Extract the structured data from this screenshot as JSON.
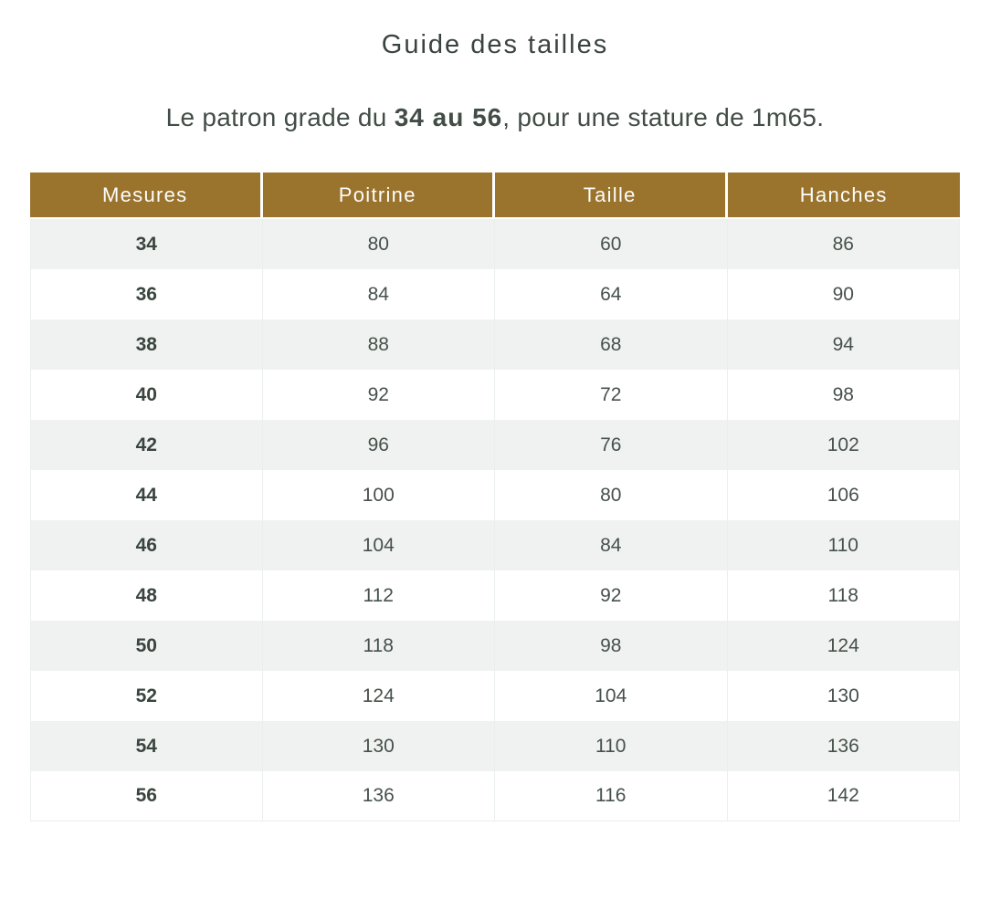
{
  "page": {
    "title": "Guide des tailles",
    "subtitle": {
      "prefix": "Le patron grade du ",
      "range": "34 au 56",
      "suffix": ", pour une stature de 1m65."
    }
  },
  "chart_data": {
    "type": "table",
    "title": "Guide des tailles",
    "columns": [
      "Mesures",
      "Poitrine",
      "Taille",
      "Hanches"
    ],
    "rows": [
      [
        34,
        80,
        60,
        86
      ],
      [
        36,
        84,
        64,
        90
      ],
      [
        38,
        88,
        68,
        94
      ],
      [
        40,
        92,
        72,
        98
      ],
      [
        42,
        96,
        76,
        102
      ],
      [
        44,
        100,
        80,
        106
      ],
      [
        46,
        104,
        84,
        110
      ],
      [
        48,
        112,
        92,
        118
      ],
      [
        50,
        118,
        98,
        124
      ],
      [
        52,
        124,
        104,
        130
      ],
      [
        54,
        130,
        110,
        136
      ],
      [
        56,
        136,
        116,
        142
      ]
    ]
  },
  "colors": {
    "header_bg": "#9a742d",
    "header_text": "#fdfdfd",
    "row_alt_bg": "#f0f2f1",
    "row_bg": "#ffffff",
    "body_text": "#3e4943",
    "border": "#eaefec"
  }
}
